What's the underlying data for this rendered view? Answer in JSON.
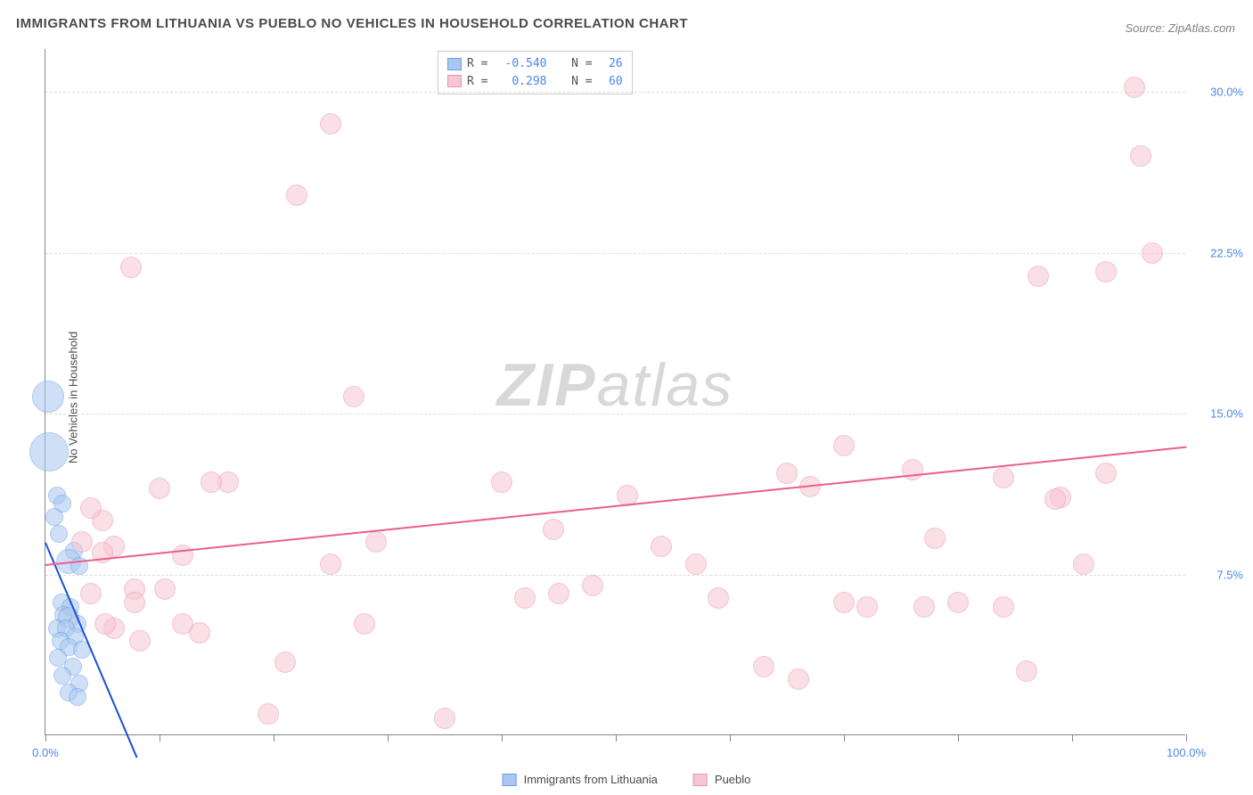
{
  "title": "IMMIGRANTS FROM LITHUANIA VS PUEBLO NO VEHICLES IN HOUSEHOLD CORRELATION CHART",
  "source": "Source: ZipAtlas.com",
  "ylabel": "No Vehicles in Household",
  "watermark_bold": "ZIP",
  "watermark_rest": "atlas",
  "chart": {
    "type": "scatter",
    "background_color": "#ffffff",
    "grid_color": "#dddddd",
    "axis_color": "#888888",
    "tick_label_color": "#4a86e8",
    "title_fontsize": 15,
    "label_fontsize": 13,
    "xlim": [
      0,
      100
    ],
    "ylim": [
      0,
      32
    ],
    "xticks": [
      0,
      10,
      20,
      30,
      40,
      50,
      60,
      70,
      80,
      90,
      100
    ],
    "xtick_labels": {
      "0": "0.0%",
      "100": "100.0%"
    },
    "yticks": [
      7.5,
      15.0,
      22.5,
      30.0
    ],
    "ytick_labels": [
      "7.5%",
      "15.0%",
      "22.5%",
      "30.0%"
    ],
    "series": [
      {
        "name": "Immigrants from Lithuania",
        "fill_color": "#a9c7f0",
        "stroke_color": "#6a9de8",
        "fill_opacity": 0.55,
        "trend_color": "#1c4fd6",
        "r_value": "-0.540",
        "n_value": "26",
        "trend": {
          "x1": 0,
          "y1": 9.0,
          "x2": 8,
          "y2": -1.0
        },
        "points": [
          {
            "x": 0.2,
            "y": 15.8,
            "r": 18
          },
          {
            "x": 0.3,
            "y": 13.2,
            "r": 22
          },
          {
            "x": 1.0,
            "y": 11.2,
            "r": 10
          },
          {
            "x": 1.5,
            "y": 10.8,
            "r": 10
          },
          {
            "x": 0.8,
            "y": 10.2,
            "r": 10
          },
          {
            "x": 1.2,
            "y": 9.4,
            "r": 10
          },
          {
            "x": 2.5,
            "y": 8.6,
            "r": 10
          },
          {
            "x": 2.0,
            "y": 8.1,
            "r": 14
          },
          {
            "x": 3.0,
            "y": 7.9,
            "r": 10
          },
          {
            "x": 1.4,
            "y": 6.2,
            "r": 10
          },
          {
            "x": 2.2,
            "y": 6.0,
            "r": 10
          },
          {
            "x": 1.6,
            "y": 5.6,
            "r": 10
          },
          {
            "x": 2.0,
            "y": 5.5,
            "r": 12
          },
          {
            "x": 2.8,
            "y": 5.2,
            "r": 10
          },
          {
            "x": 1.0,
            "y": 5.0,
            "r": 10
          },
          {
            "x": 1.8,
            "y": 5.0,
            "r": 10
          },
          {
            "x": 2.6,
            "y": 4.6,
            "r": 10
          },
          {
            "x": 1.3,
            "y": 4.4,
            "r": 10
          },
          {
            "x": 2.0,
            "y": 4.1,
            "r": 10
          },
          {
            "x": 3.2,
            "y": 4.0,
            "r": 10
          },
          {
            "x": 1.1,
            "y": 3.6,
            "r": 10
          },
          {
            "x": 2.4,
            "y": 3.2,
            "r": 10
          },
          {
            "x": 1.5,
            "y": 2.8,
            "r": 10
          },
          {
            "x": 3.0,
            "y": 2.4,
            "r": 10
          },
          {
            "x": 2.0,
            "y": 2.0,
            "r": 10
          },
          {
            "x": 2.8,
            "y": 1.8,
            "r": 10
          }
        ]
      },
      {
        "name": "Pueblo",
        "fill_color": "#f7c6d3",
        "stroke_color": "#ec94b2",
        "fill_opacity": 0.55,
        "trend_color": "#ea5e8e",
        "r_value": "0.298",
        "n_value": "60",
        "trend": {
          "x1": 0,
          "y1": 8.0,
          "x2": 100,
          "y2": 13.5
        },
        "points": [
          {
            "x": 7.5,
            "y": 21.8,
            "r": 12
          },
          {
            "x": 25.0,
            "y": 28.5,
            "r": 12
          },
          {
            "x": 22.0,
            "y": 25.2,
            "r": 12
          },
          {
            "x": 27.0,
            "y": 15.8,
            "r": 12
          },
          {
            "x": 95.5,
            "y": 30.2,
            "r": 12
          },
          {
            "x": 96.0,
            "y": 27.0,
            "r": 12
          },
          {
            "x": 97.0,
            "y": 22.5,
            "r": 12
          },
          {
            "x": 93.0,
            "y": 21.6,
            "r": 12
          },
          {
            "x": 87.0,
            "y": 21.4,
            "r": 12
          },
          {
            "x": 70.0,
            "y": 13.5,
            "r": 12
          },
          {
            "x": 65.0,
            "y": 12.2,
            "r": 12
          },
          {
            "x": 67.0,
            "y": 11.6,
            "r": 12
          },
          {
            "x": 76.0,
            "y": 12.4,
            "r": 12
          },
          {
            "x": 78.0,
            "y": 9.2,
            "r": 12
          },
          {
            "x": 84.0,
            "y": 12.0,
            "r": 12
          },
          {
            "x": 89.0,
            "y": 11.1,
            "r": 12
          },
          {
            "x": 88.5,
            "y": 11.0,
            "r": 12
          },
          {
            "x": 84.0,
            "y": 6.0,
            "r": 12
          },
          {
            "x": 86.0,
            "y": 3.0,
            "r": 12
          },
          {
            "x": 80.0,
            "y": 6.2,
            "r": 12
          },
          {
            "x": 77.0,
            "y": 6.0,
            "r": 12
          },
          {
            "x": 66.0,
            "y": 2.6,
            "r": 12
          },
          {
            "x": 63.0,
            "y": 3.2,
            "r": 12
          },
          {
            "x": 70.0,
            "y": 6.2,
            "r": 12
          },
          {
            "x": 72.0,
            "y": 6.0,
            "r": 12
          },
          {
            "x": 57.0,
            "y": 8.0,
            "r": 12
          },
          {
            "x": 54.0,
            "y": 8.8,
            "r": 12
          },
          {
            "x": 48.0,
            "y": 7.0,
            "r": 12
          },
          {
            "x": 44.5,
            "y": 9.6,
            "r": 12
          },
          {
            "x": 42.0,
            "y": 6.4,
            "r": 12
          },
          {
            "x": 45.0,
            "y": 6.6,
            "r": 12
          },
          {
            "x": 40.0,
            "y": 11.8,
            "r": 12
          },
          {
            "x": 35.0,
            "y": 0.8,
            "r": 12
          },
          {
            "x": 29.0,
            "y": 9.0,
            "r": 12
          },
          {
            "x": 28.0,
            "y": 5.2,
            "r": 12
          },
          {
            "x": 25.0,
            "y": 8.0,
            "r": 12
          },
          {
            "x": 21.0,
            "y": 3.4,
            "r": 12
          },
          {
            "x": 19.5,
            "y": 1.0,
            "r": 12
          },
          {
            "x": 16.0,
            "y": 11.8,
            "r": 12
          },
          {
            "x": 14.5,
            "y": 11.8,
            "r": 12
          },
          {
            "x": 13.5,
            "y": 4.8,
            "r": 12
          },
          {
            "x": 12.0,
            "y": 5.2,
            "r": 12
          },
          {
            "x": 12.0,
            "y": 8.4,
            "r": 12
          },
          {
            "x": 10.5,
            "y": 6.8,
            "r": 12
          },
          {
            "x": 10.0,
            "y": 11.5,
            "r": 12
          },
          {
            "x": 7.8,
            "y": 6.8,
            "r": 12
          },
          {
            "x": 7.8,
            "y": 6.2,
            "r": 12
          },
          {
            "x": 8.3,
            "y": 4.4,
            "r": 12
          },
          {
            "x": 6.0,
            "y": 8.8,
            "r": 12
          },
          {
            "x": 6.0,
            "y": 5.0,
            "r": 12
          },
          {
            "x": 5.0,
            "y": 10.0,
            "r": 12
          },
          {
            "x": 5.0,
            "y": 8.5,
            "r": 12
          },
          {
            "x": 5.2,
            "y": 5.2,
            "r": 12
          },
          {
            "x": 4.0,
            "y": 10.6,
            "r": 12
          },
          {
            "x": 4.0,
            "y": 6.6,
            "r": 12
          },
          {
            "x": 3.2,
            "y": 9.0,
            "r": 12
          },
          {
            "x": 51.0,
            "y": 11.2,
            "r": 12
          },
          {
            "x": 59.0,
            "y": 6.4,
            "r": 12
          },
          {
            "x": 91.0,
            "y": 8.0,
            "r": 12
          },
          {
            "x": 93.0,
            "y": 12.2,
            "r": 12
          }
        ]
      }
    ]
  },
  "legend_bottom": [
    {
      "label": "Immigrants from Lithuania",
      "fill": "#a9c7f0",
      "stroke": "#6a9de8"
    },
    {
      "label": "Pueblo",
      "fill": "#f7c6d3",
      "stroke": "#ec94b2"
    }
  ]
}
